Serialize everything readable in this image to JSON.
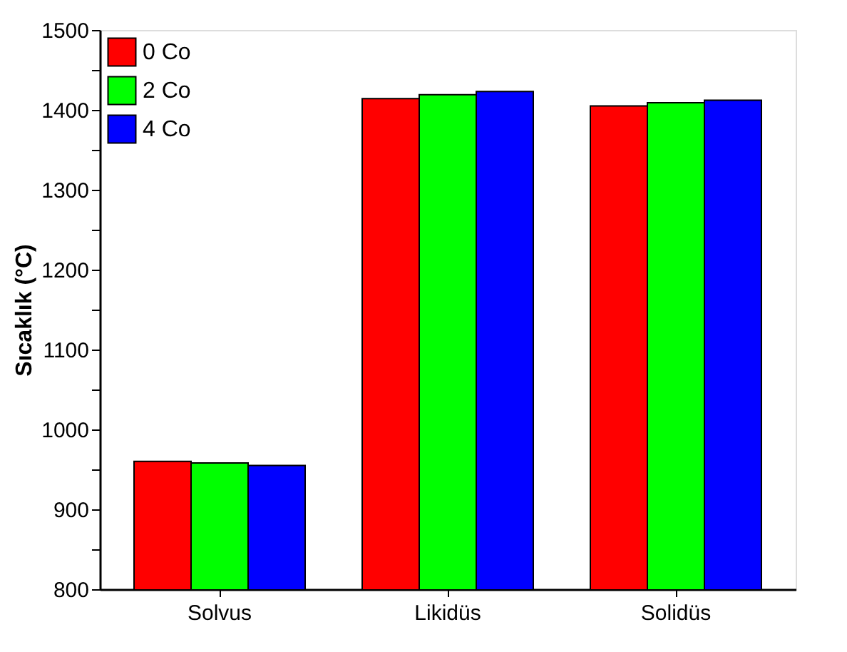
{
  "chart_data": {
    "type": "bar",
    "ylabel": "Sıcaklık (°C)",
    "categories": [
      "Solvus",
      "Likidüs",
      "Solidüs"
    ],
    "series": [
      {
        "name": "0 Co",
        "color": "#ff0000",
        "values": [
          960,
          1414,
          1405
        ]
      },
      {
        "name": "2 Co",
        "color": "#00ff00",
        "values": [
          958,
          1419,
          1409
        ]
      },
      {
        "name": "4 Co",
        "color": "#0000ff",
        "values": [
          955,
          1423,
          1412
        ]
      }
    ],
    "ylim": [
      800,
      1500
    ],
    "yticks": [
      800,
      {
        "value": 850,
        "label": null
      },
      900,
      {
        "value": 950,
        "label": null
      },
      1000,
      {
        "value": 1050,
        "label": null
      },
      1100,
      {
        "value": 1150,
        "label": null
      },
      1200,
      {
        "value": 1250,
        "label": null
      },
      1300,
      {
        "value": 1350,
        "label": null
      },
      1400,
      {
        "value": 1450,
        "label": null
      },
      1500
    ],
    "legend": "top left"
  }
}
